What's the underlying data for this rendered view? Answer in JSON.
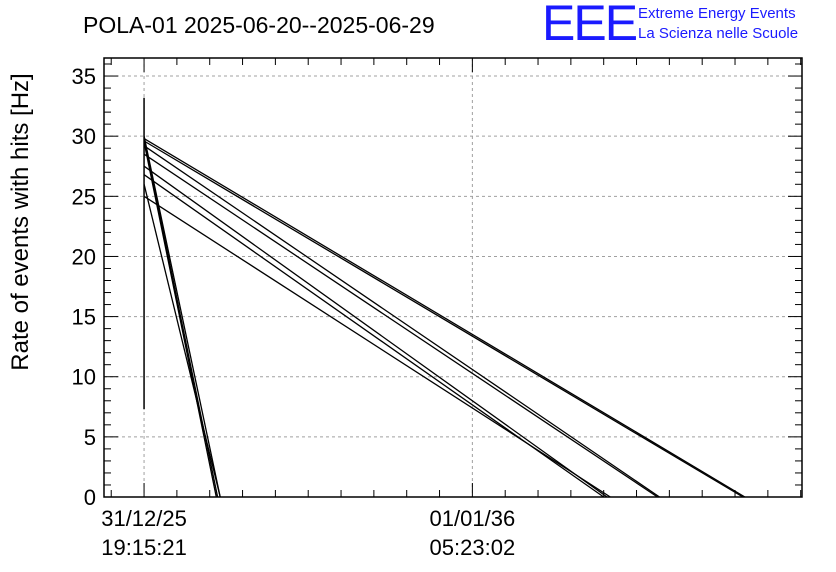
{
  "header": {
    "title": "POLA-01 2025-06-20--2025-06-29",
    "logo_text": "EEE",
    "logo_line1": "Extreme Energy Events",
    "logo_line2": "La Scienza nelle Scuole",
    "logo_color": "#1a1aff"
  },
  "chart_data": {
    "type": "line",
    "title": "POLA-01 2025-06-20--2025-06-29",
    "xlabel": "",
    "ylabel": "Rate of events with hits [Hz]",
    "ylim": [
      0,
      36.5
    ],
    "yticks": [
      0,
      5,
      10,
      15,
      20,
      25,
      30,
      35
    ],
    "x_tick_labels": [
      {
        "date": "31/12/25",
        "time": "19:15:21"
      },
      {
        "date": "01/01/36",
        "time": "05:23:02"
      }
    ],
    "grid": true,
    "spike": {
      "x": 0.0,
      "ymin": 7.3,
      "ymax": 33.2
    },
    "series": [
      {
        "points": [
          [
            0.0,
            30.0
          ],
          [
            11.6,
            0
          ]
        ]
      },
      {
        "points": [
          [
            0.0,
            29.8
          ],
          [
            11.2,
            0
          ]
        ]
      },
      {
        "points": [
          [
            0.0,
            29.5
          ],
          [
            11.0,
            0
          ]
        ]
      },
      {
        "points": [
          [
            0.0,
            26.0
          ],
          [
            11.6,
            0
          ]
        ]
      },
      {
        "points": [
          [
            0.0,
            29.8
          ],
          [
            91.5,
            0
          ]
        ]
      },
      {
        "points": [
          [
            0.0,
            29.6
          ],
          [
            91.2,
            0
          ]
        ]
      },
      {
        "points": [
          [
            0.0,
            29.2
          ],
          [
            78.5,
            0
          ]
        ]
      },
      {
        "points": [
          [
            0.0,
            28.5
          ],
          [
            78.2,
            0
          ]
        ]
      },
      {
        "points": [
          [
            0.0,
            27.5
          ],
          [
            70.5,
            0
          ]
        ]
      },
      {
        "points": [
          [
            0.0,
            25.0
          ],
          [
            71.0,
            0
          ]
        ]
      },
      {
        "points": [
          [
            0.0,
            26.8
          ],
          [
            70.0,
            0
          ]
        ]
      }
    ],
    "x_domain": [
      -6.1,
      100.2
    ],
    "x_tick_positions": [
      0.0,
      50.0
    ]
  }
}
